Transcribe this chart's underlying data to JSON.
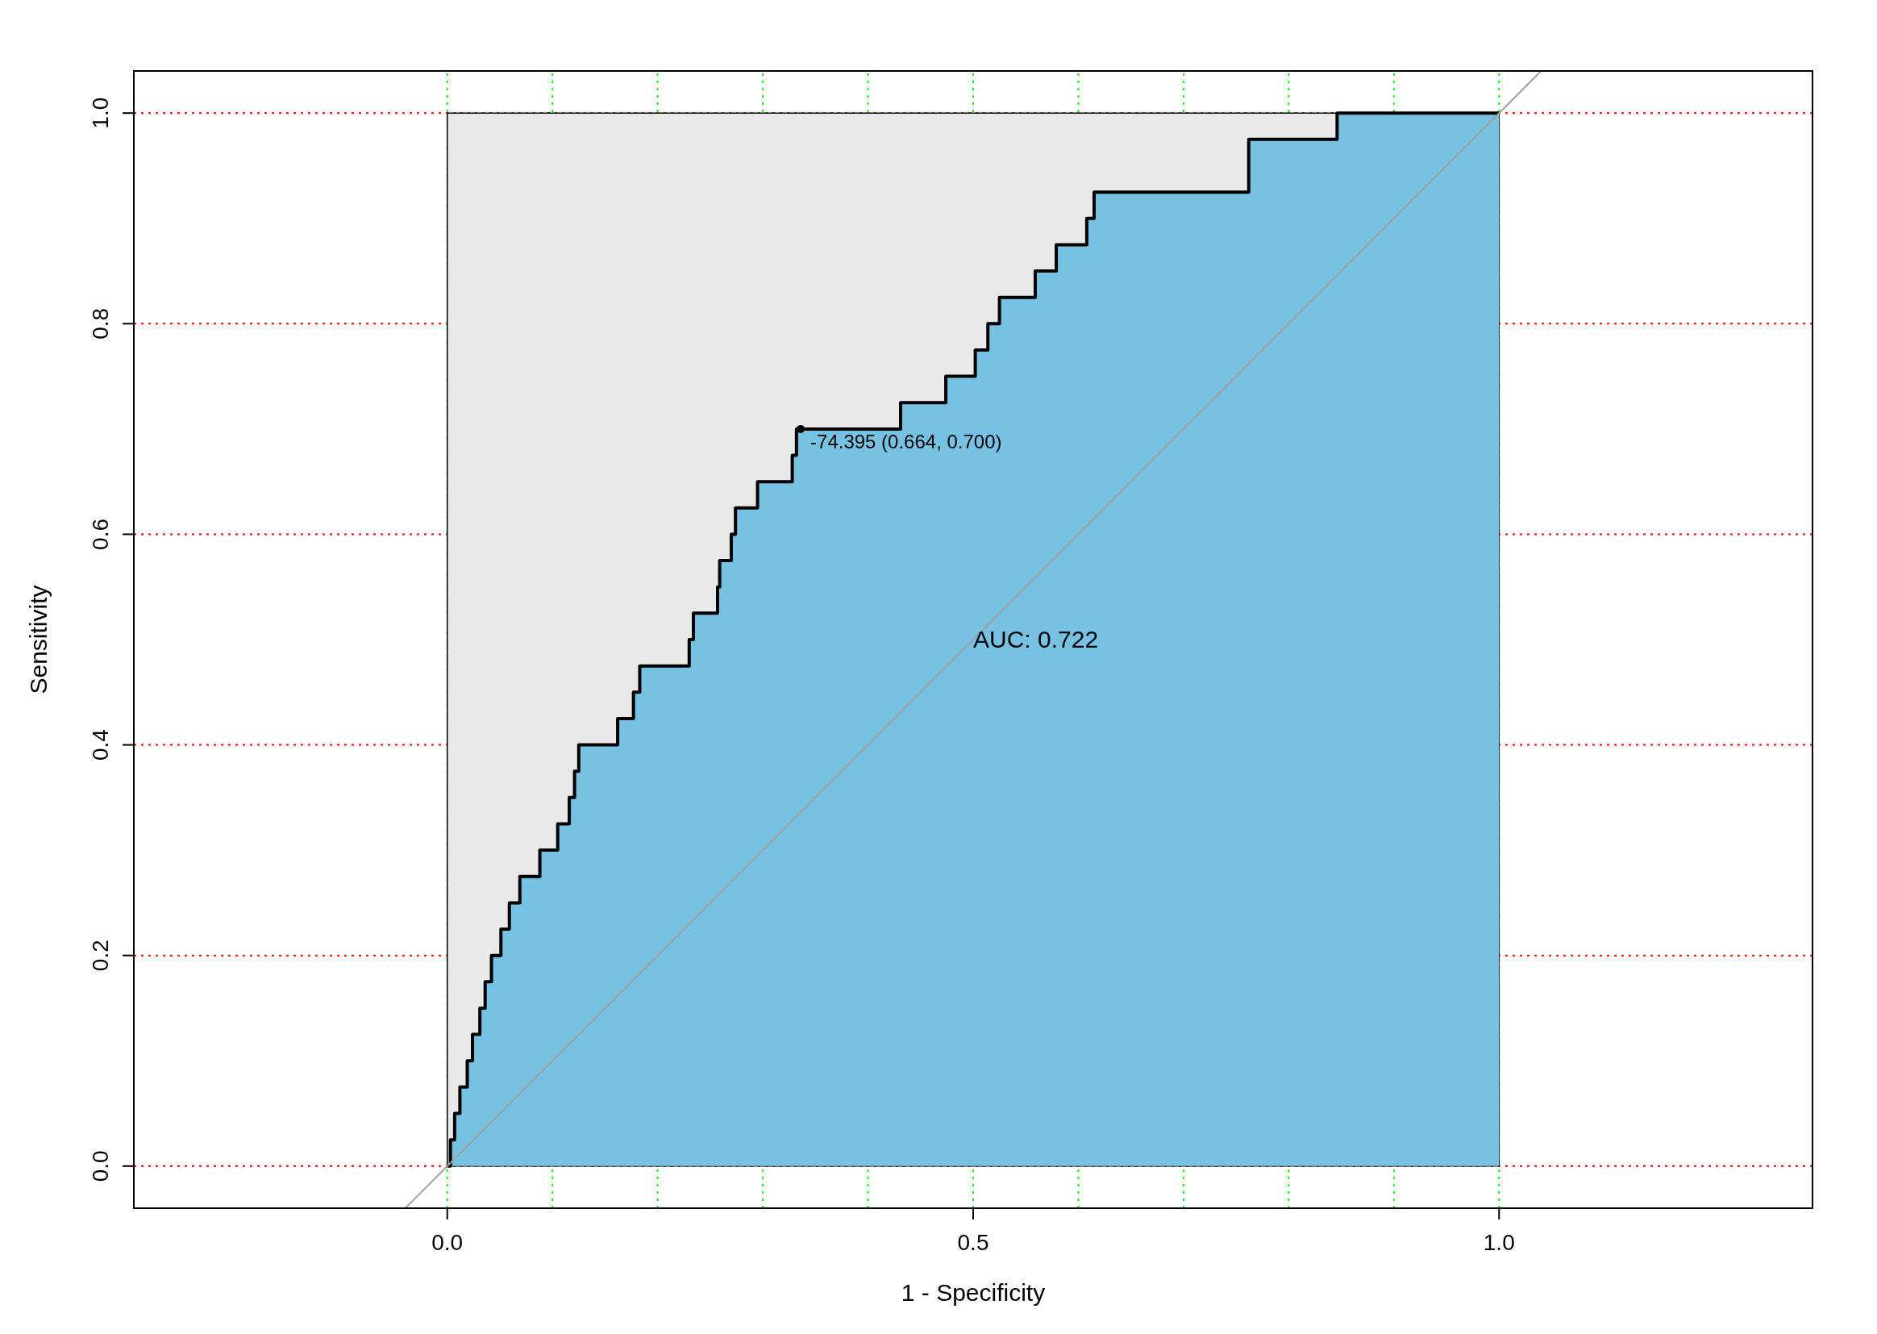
{
  "chart_data": {
    "type": "area",
    "xlabel": "1 - Specificity",
    "ylabel": "Sensitivity",
    "xlim": [
      -0.298,
      1.298
    ],
    "ylim": [
      -0.04,
      1.04
    ],
    "xticks": [
      {
        "value": 0,
        "label": "0.0"
      },
      0.5,
      {
        "value": 1,
        "label": "1.0"
      }
    ],
    "yticks": [
      {
        "value": 0,
        "label": "0.0"
      },
      0.2,
      0.4,
      0.6,
      0.8,
      {
        "value": 1,
        "label": "1.0"
      }
    ],
    "series": [
      {
        "color": "#77c1e3",
        "x": [
          0,
          0.003,
          0.007,
          0.012,
          0.019,
          0.024,
          0.031,
          0.036,
          0.042,
          0.051,
          0.059,
          0.069,
          0.088,
          0.105,
          0.116,
          0.121,
          0.125,
          0.162,
          0.177,
          0.183,
          0.23,
          0.234,
          0.257,
          0.259,
          0.27,
          0.274,
          0.295,
          0.328,
          0.332,
          0.431,
          0.474,
          0.502,
          0.514,
          0.525,
          0.559,
          0.579,
          0.608,
          0.615,
          0.762,
          0.846,
          1
        ],
        "values": [
          0,
          0.025,
          0.05,
          0.075,
          0.1,
          0.125,
          0.15,
          0.175,
          0.2,
          0.225,
          0.25,
          0.275,
          0.3,
          0.325,
          0.35,
          0.375,
          0.4,
          0.425,
          0.45,
          0.475,
          0.5,
          0.525,
          0.55,
          0.575,
          0.6,
          0.625,
          0.65,
          0.675,
          0.7,
          0.725,
          0.75,
          0.775,
          0.8,
          0.825,
          0.85,
          0.875,
          0.9,
          0.925,
          0.975,
          1,
          1
        ]
      },
      {
        "type": "line",
        "color": "#a0a0a0",
        "x": [
          -0.04,
          1.04
        ],
        "values": [
          -0.04,
          1.04
        ]
      }
    ],
    "ref_lines": [
      {
        "axis": "y",
        "value": 0,
        "color": "#ff0000",
        "line_style": "dotted"
      },
      {
        "axis": "y",
        "value": 0.2,
        "color": "#ff0000",
        "line_style": "dotted"
      },
      {
        "axis": "y",
        "value": 0.4,
        "color": "#ff0000",
        "line_style": "dotted"
      },
      {
        "axis": "y",
        "value": 0.6,
        "color": "#ff0000",
        "line_style": "dotted"
      },
      {
        "axis": "y",
        "value": 0.8,
        "color": "#ff0000",
        "line_style": "dotted"
      },
      {
        "axis": "y",
        "value": 1,
        "color": "#ff0000",
        "line_style": "dotted"
      },
      {
        "axis": "x",
        "value": 0,
        "color": "#00ff00",
        "line_style": "dotted"
      },
      {
        "axis": "x",
        "value": 0.1,
        "color": "#00ff00",
        "line_style": "dotted"
      },
      {
        "axis": "x",
        "value": 0.2,
        "color": "#00ff00",
        "line_style": "dotted"
      },
      {
        "axis": "x",
        "value": 0.3,
        "color": "#00ff00",
        "line_style": "dotted"
      },
      {
        "axis": "x",
        "value": 0.4,
        "color": "#00ff00",
        "line_style": "dotted"
      },
      {
        "axis": "x",
        "value": 0.5,
        "color": "#00ff00",
        "line_style": "dotted"
      },
      {
        "axis": "x",
        "value": 0.6,
        "color": "#00ff00",
        "line_style": "dotted"
      },
      {
        "axis": "x",
        "value": 0.7,
        "color": "#00ff00",
        "line_style": "dotted"
      },
      {
        "axis": "x",
        "value": 0.8,
        "color": "#00ff00",
        "line_style": "dotted"
      },
      {
        "axis": "x",
        "value": 0.9,
        "color": "#00ff00",
        "line_style": "dotted"
      },
      {
        "axis": "x",
        "value": 1,
        "color": "#00ff00",
        "line_style": "dotted"
      }
    ],
    "annotations": [
      {
        "text": "-74.395 (0.664, 0.700)",
        "x": 0.336,
        "y": 0.7
      },
      "AUC: 0.722"
    ]
  }
}
